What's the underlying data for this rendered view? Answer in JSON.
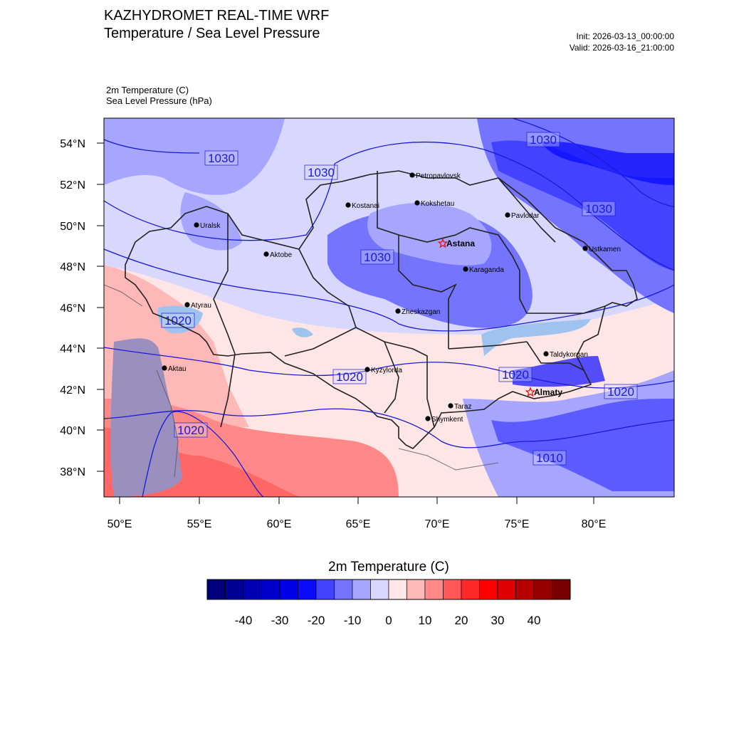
{
  "header": {
    "title": "KAZHYDROMET REAL-TIME WRF",
    "subtitle": "Temperature / Sea Level Pressure",
    "init": "Init: 2026-03-13_00:00:00",
    "valid": "Valid: 2026-03-16_21:00:00"
  },
  "variables": {
    "temp_label": "2m Temperature   (C)",
    "pressure_label": "Sea Level Pressure   (hPa)"
  },
  "axes": {
    "lon_ticks": [
      "50°E",
      "55°E",
      "60°E",
      "65°E",
      "70°E",
      "75°E",
      "80°E"
    ],
    "lat_ticks": [
      "54°N",
      "52°N",
      "50°N",
      "48°N",
      "46°N",
      "44°N",
      "42°N",
      "40°N",
      "38°N"
    ]
  },
  "colors": {
    "contour": "#1a1ad8",
    "border": "#222222",
    "star": "#e01010"
  },
  "isobar_labels": [
    "1030",
    "1030",
    "1030",
    "1030",
    "1030",
    "1020",
    "1020",
    "1020",
    "1020",
    "1020",
    "1010"
  ],
  "cities": [
    {
      "name": "Petropavlovsk",
      "star": false
    },
    {
      "name": "Kostanai",
      "star": false
    },
    {
      "name": "Kokshetau",
      "star": false
    },
    {
      "name": "Uralsk",
      "star": false
    },
    {
      "name": "Pavlodar",
      "star": false
    },
    {
      "name": "Astana",
      "star": true
    },
    {
      "name": "Aktobe",
      "star": false
    },
    {
      "name": "Ustkamen",
      "star": false
    },
    {
      "name": "Karaganda",
      "star": false
    },
    {
      "name": "Atyrau",
      "star": false
    },
    {
      "name": "Zheskazgan",
      "star": false
    },
    {
      "name": "Taldykorgan",
      "star": false
    },
    {
      "name": "Aktau",
      "star": false
    },
    {
      "name": "Kyzylorda",
      "star": false
    },
    {
      "name": "Almaty",
      "star": true
    },
    {
      "name": "Taraz",
      "star": false
    },
    {
      "name": "Shymkent",
      "star": false
    }
  ],
  "colorbar": {
    "title": "2m Temperature  (C)",
    "tick_labels": [
      "-40",
      "-30",
      "-20",
      "-10",
      "0",
      "10",
      "20",
      "30",
      "40"
    ],
    "colors": [
      "#00007a",
      "#000096",
      "#0000b2",
      "#0000cc",
      "#0000e6",
      "#0a0aff",
      "#4242ff",
      "#7474ff",
      "#a6a6ff",
      "#d8d8ff",
      "#ffe6e6",
      "#ffb8b8",
      "#ff8888",
      "#ff5858",
      "#ff2828",
      "#ff0000",
      "#dc0000",
      "#b80000",
      "#980000",
      "#780000"
    ]
  }
}
